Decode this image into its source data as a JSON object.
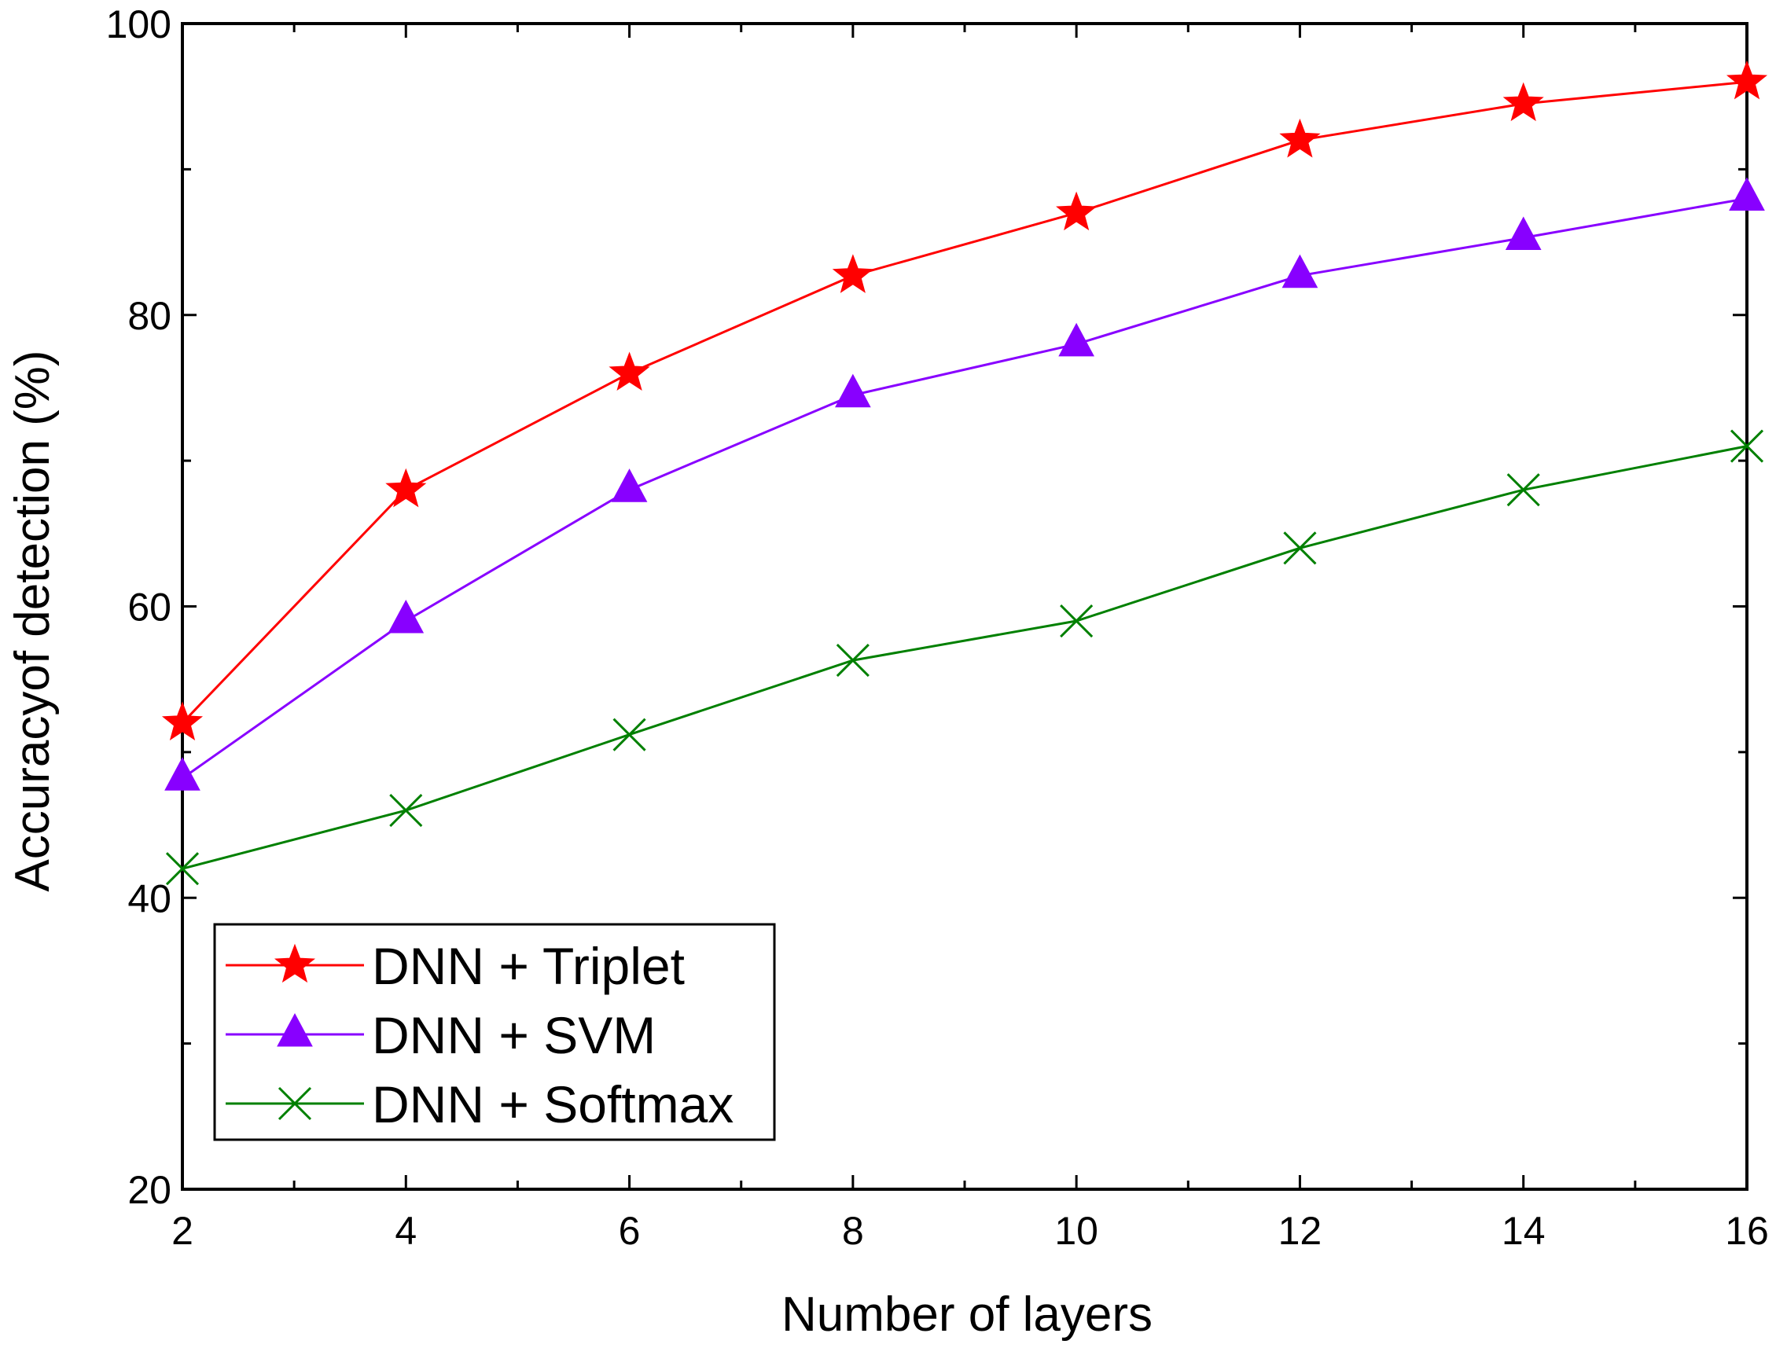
{
  "chart_data": {
    "type": "line",
    "title": "",
    "xlabel": "Number of layers",
    "ylabel": "Accuracyof detection (%)",
    "xlim": [
      2,
      16
    ],
    "ylim": [
      20,
      100
    ],
    "x_ticks": [
      2,
      4,
      6,
      8,
      10,
      12,
      14,
      16
    ],
    "x_tick_labels": [
      "2",
      "4",
      "6",
      "8",
      "10",
      "12",
      "14",
      "16"
    ],
    "y_ticks": [
      20,
      40,
      60,
      80,
      100
    ],
    "y_tick_labels": [
      "20",
      "40",
      "60",
      "80",
      "100"
    ],
    "grid": false,
    "legend_position": "bottom-left",
    "x": [
      2,
      4,
      6,
      8,
      10,
      12,
      14,
      16
    ],
    "series": [
      {
        "name": "DNN + Triplet",
        "color": "#ff0000",
        "marker": "star",
        "values": [
          52,
          68,
          76,
          82.7,
          87,
          92,
          94.5,
          96
        ]
      },
      {
        "name": "DNN + SVM",
        "color": "#8800ff",
        "marker": "triangle",
        "values": [
          48.2,
          59,
          68,
          74.5,
          78,
          82.7,
          85.3,
          88
        ]
      },
      {
        "name": "DNN + Softmax",
        "color": "#008000",
        "marker": "x",
        "values": [
          42,
          46,
          51.2,
          56.3,
          59,
          64,
          68,
          71
        ]
      }
    ]
  }
}
